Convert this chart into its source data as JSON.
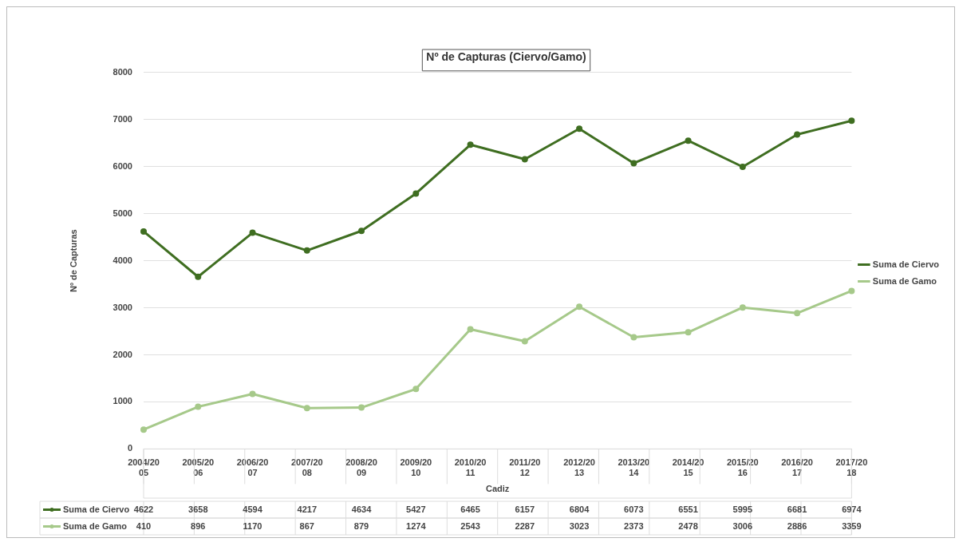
{
  "chart_data": {
    "type": "line",
    "title": "Nº de Capturas (Ciervo/Gamo)",
    "xlabel": "Cadiz",
    "ylabel": "Nº de Capturas",
    "categories": [
      "2004/2005",
      "2005/2006",
      "2006/2007",
      "2007/2008",
      "2008/2009",
      "2009/2010",
      "2010/2011",
      "2011/2012",
      "2012/2013",
      "2013/2014",
      "2014/2015",
      "2015/2016",
      "2016/2017",
      "2017/2018"
    ],
    "series": [
      {
        "name": "Suma de Ciervo",
        "color": "#3f6e21",
        "values": [
          4622,
          3658,
          4594,
          4217,
          4634,
          5427,
          6465,
          6157,
          6804,
          6073,
          6551,
          5995,
          6681,
          6974
        ]
      },
      {
        "name": "Suma de Gamo",
        "color": "#a6c98a",
        "values": [
          410,
          896,
          1170,
          867,
          879,
          1274,
          2543,
          2287,
          3023,
          2373,
          2478,
          3006,
          2886,
          3359
        ]
      }
    ],
    "ylim": [
      0,
      8000
    ],
    "yticks": [
      0,
      1000,
      2000,
      3000,
      4000,
      5000,
      6000,
      7000,
      8000
    ],
    "grid": "y",
    "legend": "right",
    "marker": "circle",
    "line_style": "solid",
    "data_labels": true
  }
}
